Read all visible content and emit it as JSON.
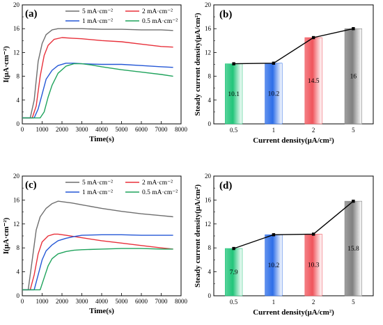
{
  "chart_data": [
    {
      "id": "a",
      "type": "line",
      "panel_label": "(a)",
      "xlabel": "Time(s)",
      "ylabel": "I(μA·cm⁻²)",
      "xlim": [
        0,
        8000
      ],
      "ylim": [
        0,
        20
      ],
      "xticks": [
        "0",
        "1000",
        "2000",
        "3000",
        "4000",
        "5000",
        "6000",
        "7000",
        "8000"
      ],
      "yticks": [
        "0",
        "4",
        "8",
        "12",
        "16",
        "20"
      ],
      "legend": "top, two columns",
      "series": [
        {
          "name": "5 mA·cm⁻²",
          "color": "#6e6e6e",
          "x": [
            0,
            400,
            600,
            800,
            1000,
            1200,
            1500,
            1800,
            2200,
            3000,
            4000,
            5000,
            6000,
            7000,
            7600
          ],
          "y": [
            1.0,
            1.0,
            4.0,
            10.5,
            13.5,
            15.0,
            15.8,
            16.0,
            16.0,
            16.0,
            15.9,
            15.9,
            15.8,
            15.8,
            15.7
          ]
        },
        {
          "name": "2 mA·cm⁻²",
          "color": "#e8303a",
          "x": [
            0,
            500,
            700,
            900,
            1100,
            1300,
            1600,
            2000,
            2500,
            3000,
            4000,
            5000,
            6000,
            7000,
            7600
          ],
          "y": [
            1.0,
            1.0,
            3.0,
            8.0,
            11.5,
            13.2,
            14.2,
            14.5,
            14.4,
            14.3,
            14.0,
            13.8,
            13.4,
            13.0,
            12.9
          ]
        },
        {
          "name": "1 mA·cm⁻²",
          "color": "#2457d6",
          "x": [
            0,
            600,
            800,
            1000,
            1200,
            1500,
            1800,
            2200,
            2600,
            3000,
            4000,
            5000,
            6000,
            7000,
            7600
          ],
          "y": [
            1.0,
            1.0,
            2.5,
            5.0,
            7.5,
            9.0,
            9.8,
            10.2,
            10.2,
            10.1,
            10.0,
            10.0,
            9.8,
            9.6,
            9.5
          ]
        },
        {
          "name": "0.5 mA·cm⁻²",
          "color": "#1fa35c",
          "x": [
            0,
            900,
            1100,
            1300,
            1500,
            1800,
            2200,
            2600,
            3000,
            3500,
            4000,
            5000,
            6000,
            7000,
            7600
          ],
          "y": [
            1.0,
            1.0,
            2.0,
            4.5,
            6.5,
            8.5,
            9.7,
            10.1,
            10.1,
            9.9,
            9.6,
            9.1,
            8.7,
            8.3,
            8.0
          ]
        }
      ]
    },
    {
      "id": "b",
      "type": "bar",
      "panel_label": "(b)",
      "xlabel": "Current density(μA/cm²)",
      "ylabel": "Steady current density(μA/cm²)",
      "ylim": [
        0,
        20
      ],
      "yticks": [
        "0",
        "4",
        "8",
        "12",
        "16",
        "20"
      ],
      "categories": [
        "0.5",
        "1",
        "2",
        "5"
      ],
      "values": [
        10.1,
        10.2,
        14.5,
        16
      ],
      "value_labels": [
        "10.1",
        "10.2",
        "14.5",
        "16"
      ],
      "bar_colors": [
        "#22c57a",
        "#2e6ee8",
        "#f0555c",
        "#808080"
      ]
    },
    {
      "id": "c",
      "type": "line",
      "panel_label": "(c)",
      "xlabel": "Time(s)",
      "ylabel": "I(μA·cm⁻²)",
      "xlim": [
        0,
        8000
      ],
      "ylim": [
        0,
        20
      ],
      "xticks": [
        "0",
        "1000",
        "2000",
        "3000",
        "4000",
        "5000",
        "6000",
        "7000",
        "8000"
      ],
      "yticks": [
        "0",
        "4",
        "8",
        "12",
        "16",
        "20"
      ],
      "legend": "top, two columns",
      "series": [
        {
          "name": "5 mA·cm⁻²",
          "color": "#6e6e6e",
          "x": [
            0,
            300,
            500,
            700,
            900,
            1200,
            1500,
            1800,
            2500,
            3000,
            4000,
            5000,
            6000,
            7000,
            7600
          ],
          "y": [
            1.0,
            1.0,
            6.0,
            11.0,
            13.2,
            14.6,
            15.4,
            15.8,
            15.5,
            15.2,
            14.6,
            14.1,
            13.7,
            13.4,
            13.2
          ]
        },
        {
          "name": "2 mA·cm⁻²",
          "color": "#e8303a",
          "x": [
            0,
            400,
            600,
            800,
            1000,
            1300,
            1600,
            1800,
            2200,
            3000,
            4000,
            5000,
            6000,
            7000,
            7600
          ],
          "y": [
            1.0,
            1.0,
            3.5,
            7.0,
            9.0,
            10.0,
            10.3,
            10.3,
            10.1,
            9.7,
            9.2,
            8.8,
            8.4,
            8.0,
            7.8
          ]
        },
        {
          "name": "1 mA·cm⁻²",
          "color": "#2457d6",
          "x": [
            0,
            600,
            800,
            1000,
            1200,
            1500,
            1800,
            2200,
            2600,
            3000,
            4000,
            5000,
            6000,
            7000,
            7600
          ],
          "y": [
            1.0,
            1.0,
            3.5,
            6.0,
            7.5,
            8.5,
            9.2,
            9.6,
            9.9,
            10.1,
            10.2,
            10.2,
            10.1,
            10.1,
            10.1
          ]
        },
        {
          "name": "0.5 mA·cm⁻²",
          "color": "#1fa35c",
          "x": [
            0,
            900,
            1100,
            1300,
            1500,
            1800,
            2200,
            2600,
            3000,
            4000,
            5000,
            6000,
            7000,
            7600
          ],
          "y": [
            1.0,
            1.0,
            3.0,
            5.0,
            6.2,
            7.0,
            7.4,
            7.6,
            7.7,
            7.8,
            7.9,
            7.9,
            7.8,
            7.8
          ]
        }
      ]
    },
    {
      "id": "d",
      "type": "bar",
      "panel_label": "(d)",
      "xlabel": "Current density(μA/cm²)",
      "ylabel": "Steady current density(μA/cm²)",
      "ylim": [
        0,
        20
      ],
      "yticks": [
        "0",
        "4",
        "8",
        "12",
        "16",
        "20"
      ],
      "categories": [
        "0.5",
        "1",
        "2",
        "5"
      ],
      "values": [
        7.9,
        10.2,
        10.3,
        15.8
      ],
      "value_labels": [
        "7.9",
        "10.2",
        "10.3",
        "15.8"
      ],
      "bar_colors": [
        "#22c57a",
        "#2e6ee8",
        "#f0555c",
        "#808080"
      ]
    }
  ]
}
